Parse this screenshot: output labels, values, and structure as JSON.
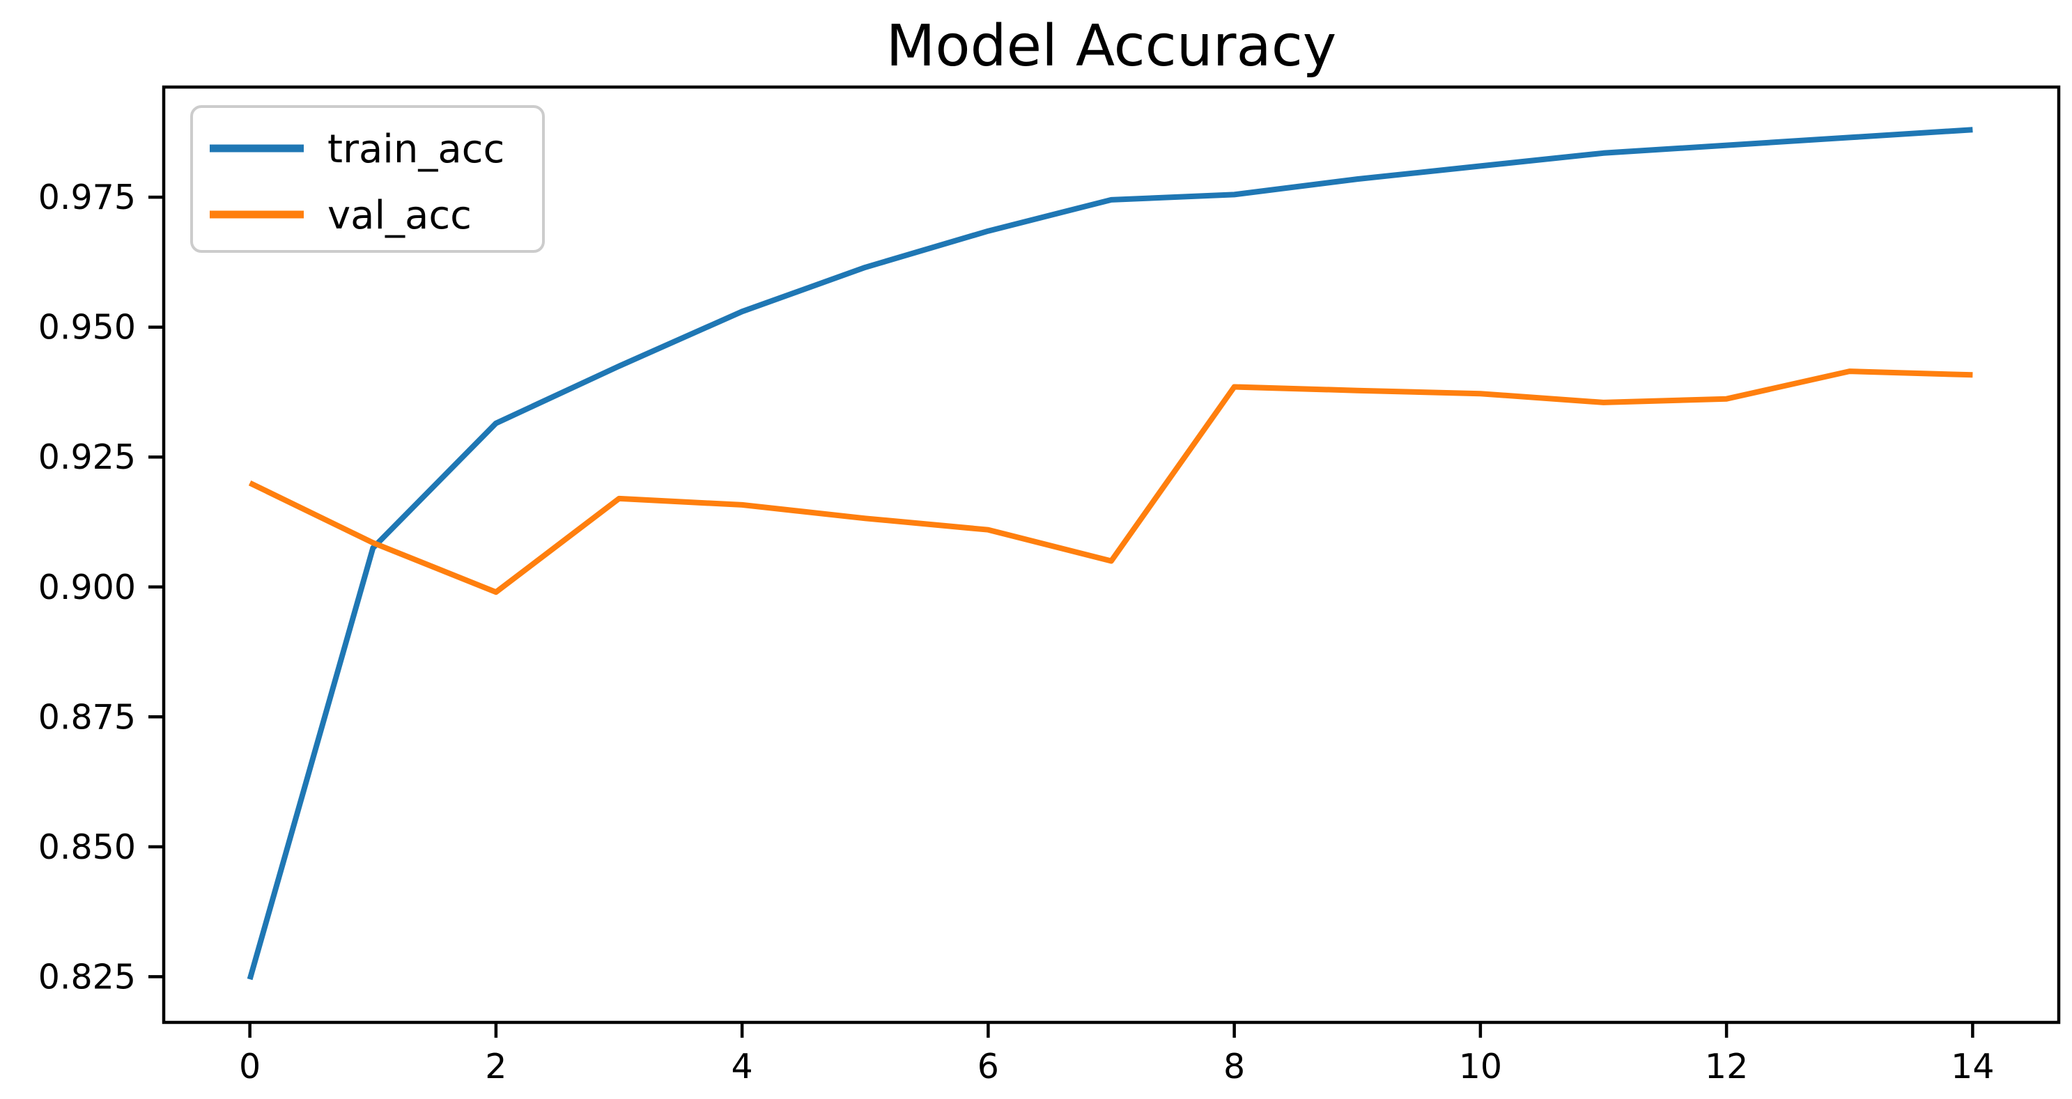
{
  "chart_data": {
    "type": "line",
    "title": "Model Accuracy",
    "xlabel": "",
    "ylabel": "",
    "grid": false,
    "background_color": "#ffffff",
    "axis_color": "#000000",
    "xlim": [
      -0.7,
      14.7
    ],
    "ylim": [
      0.8162,
      0.9962
    ],
    "x": [
      0,
      1,
      2,
      3,
      4,
      5,
      6,
      7,
      8,
      9,
      10,
      11,
      12,
      13,
      14
    ],
    "series": [
      {
        "name": "train_acc",
        "color": "#1f77b4",
        "values": [
          0.8245,
          0.9075,
          0.9315,
          0.9425,
          0.953,
          0.9615,
          0.9685,
          0.9745,
          0.9755,
          0.9785,
          0.981,
          0.9835,
          0.985,
          0.9865,
          0.988
        ]
      },
      {
        "name": "val_acc",
        "color": "#ff7f0e",
        "values": [
          0.92,
          0.9085,
          0.899,
          0.917,
          0.9158,
          0.9132,
          0.911,
          0.905,
          0.9385,
          0.9378,
          0.9372,
          0.9355,
          0.9362,
          0.9415,
          0.9408
        ]
      }
    ],
    "x_ticks": {
      "values": [
        0,
        2,
        4,
        6,
        8,
        10,
        12,
        14
      ],
      "labels": [
        "0",
        "2",
        "4",
        "6",
        "8",
        "10",
        "12",
        "14"
      ]
    },
    "y_ticks": {
      "values": [
        0.825,
        0.85,
        0.875,
        0.9,
        0.925,
        0.95,
        0.975
      ],
      "labels": [
        "0.825",
        "0.850",
        "0.875",
        "0.900",
        "0.925",
        "0.950",
        "0.975"
      ]
    },
    "legend": {
      "position": "upper left",
      "border_color": "#cccccc",
      "fill_color": "#ffffff"
    }
  }
}
